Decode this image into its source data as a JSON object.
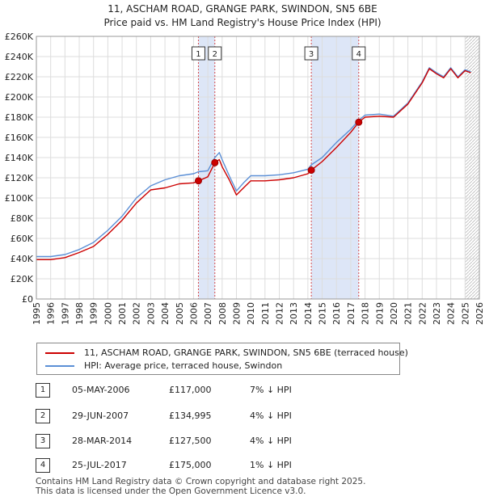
{
  "title_line1": "11, ASCHAM ROAD, GRANGE PARK, SWINDON, SN5 6BE",
  "title_line2": "Price paid vs. HM Land Registry's House Price Index (HPI)",
  "colors": {
    "property": "#cc0000",
    "hpi": "#5b8fd6",
    "highlight": "#dde6f7"
  },
  "chart_data": {
    "type": "line",
    "ylim": [
      0,
      260000
    ],
    "xlim": [
      1995,
      2026
    ],
    "y_ticks": [
      "£0",
      "£20K",
      "£40K",
      "£60K",
      "£80K",
      "£100K",
      "£120K",
      "£140K",
      "£160K",
      "£180K",
      "£200K",
      "£220K",
      "£240K",
      "£260K"
    ],
    "x_ticks": [
      "1995",
      "1996",
      "1997",
      "1998",
      "1999",
      "2000",
      "2001",
      "2002",
      "2003",
      "2004",
      "2005",
      "2006",
      "2007",
      "2008",
      "2009",
      "2010",
      "2011",
      "2012",
      "2013",
      "2014",
      "2015",
      "2016",
      "2017",
      "2018",
      "2019",
      "2020",
      "2021",
      "2022",
      "2023",
      "2024",
      "2025",
      "2026"
    ],
    "hatch_from": 2025.0,
    "shaded_ranges": [
      [
        2006.34,
        2007.49
      ],
      [
        2014.24,
        2017.56
      ]
    ],
    "series": [
      {
        "name": "11, ASCHAM ROAD, GRANGE PARK, SWINDON, SN5 6BE (terraced house)",
        "x": [
          1995,
          1996,
          1997,
          1998,
          1999,
          2000,
          2001,
          2002,
          2003,
          2004,
          2005,
          2006,
          2006.34,
          2007,
          2007.49,
          2007.8,
          2008,
          2008.5,
          2009,
          2009.5,
          2010,
          2011,
          2012,
          2013,
          2014,
          2014.24,
          2015,
          2016,
          2017,
          2017.56,
          2018,
          2019,
          2020,
          2021,
          2022,
          2022.5,
          2023,
          2023.5,
          2024,
          2024.5,
          2025,
          2025.4
        ],
        "y": [
          39000,
          39000,
          41000,
          46000,
          52000,
          64000,
          78000,
          95000,
          108000,
          110000,
          114000,
          115000,
          117000,
          121000,
          134995,
          138000,
          131000,
          118000,
          103000,
          110000,
          117000,
          117000,
          118000,
          120000,
          124000,
          127500,
          136000,
          150000,
          165000,
          175000,
          180000,
          181000,
          180000,
          193000,
          214000,
          228000,
          223000,
          219000,
          228000,
          219000,
          226000,
          224000
        ]
      },
      {
        "name": "HPI: Average price, terraced house, Swindon",
        "x": [
          1995,
          1996,
          1997,
          1998,
          1999,
          2000,
          2001,
          2002,
          2003,
          2004,
          2005,
          2006,
          2006.34,
          2007,
          2007.49,
          2007.8,
          2008,
          2008.5,
          2009,
          2009.5,
          2010,
          2011,
          2012,
          2013,
          2014,
          2014.24,
          2015,
          2016,
          2017,
          2017.56,
          2018,
          2019,
          2020,
          2021,
          2022,
          2022.5,
          2023,
          2023.5,
          2024,
          2024.5,
          2025,
          2025.4
        ],
        "y": [
          42000,
          42000,
          44000,
          49000,
          56000,
          68000,
          82000,
          100000,
          112000,
          118000,
          122000,
          124000,
          126000,
          127000,
          140000,
          145000,
          138000,
          122000,
          107000,
          115000,
          122000,
          122000,
          123000,
          125000,
          128500,
          132800,
          140000,
          155000,
          168000,
          177000,
          182000,
          183000,
          181000,
          194000,
          215000,
          229000,
          224000,
          220000,
          229000,
          220000,
          227000,
          225000
        ]
      }
    ],
    "sales": [
      {
        "num": "1",
        "x": 2006.34,
        "y": 117000
      },
      {
        "num": "2",
        "x": 2007.49,
        "y": 134995
      },
      {
        "num": "3",
        "x": 2014.24,
        "y": 127500
      },
      {
        "num": "4",
        "x": 2017.56,
        "y": 175000
      }
    ]
  },
  "legend": {
    "property": "11, ASCHAM ROAD, GRANGE PARK, SWINDON, SN5 6BE (terraced house)",
    "hpi": "HPI: Average price, terraced house, Swindon"
  },
  "table": [
    {
      "num": "1",
      "date": "05-MAY-2006",
      "price": "£117,000",
      "hpi": "7% ↓ HPI"
    },
    {
      "num": "2",
      "date": "29-JUN-2007",
      "price": "£134,995",
      "hpi": "4% ↓ HPI"
    },
    {
      "num": "3",
      "date": "28-MAR-2014",
      "price": "£127,500",
      "hpi": "4% ↓ HPI"
    },
    {
      "num": "4",
      "date": "25-JUL-2017",
      "price": "£175,000",
      "hpi": "1% ↓ HPI"
    }
  ],
  "footer_line1": "Contains HM Land Registry data © Crown copyright and database right 2025.",
  "footer_line2": "This data is licensed under the Open Government Licence v3.0."
}
